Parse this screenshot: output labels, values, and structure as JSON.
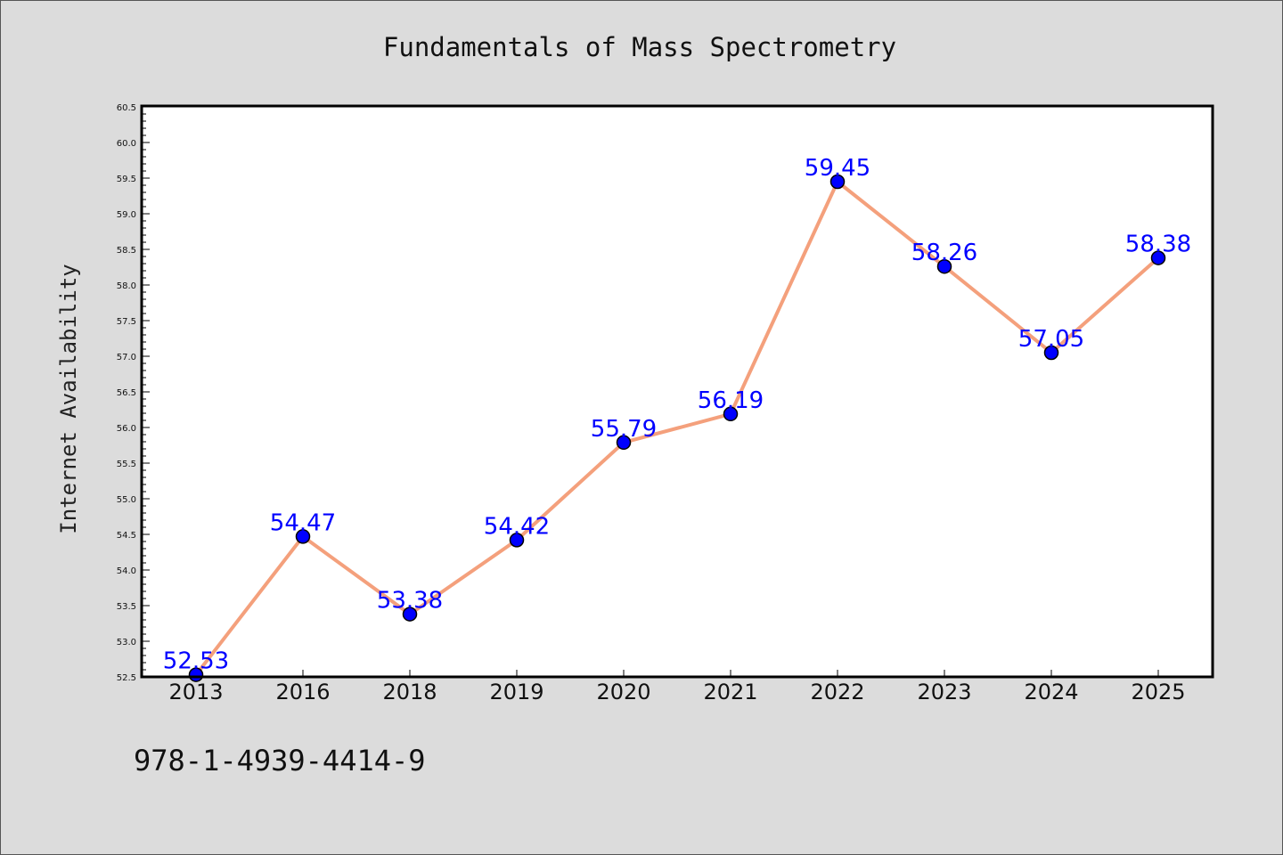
{
  "chart_data": {
    "type": "line",
    "title": "Fundamentals of Mass Spectrometry",
    "xlabel": "",
    "ylabel": "Internet Availability",
    "categories": [
      "2013",
      "2016",
      "2018",
      "2019",
      "2020",
      "2021",
      "2022",
      "2023",
      "2024",
      "2025"
    ],
    "series": [
      {
        "values": [
          52.53,
          54.47,
          53.38,
          54.42,
          55.79,
          56.19,
          59.45,
          58.26,
          57.05,
          58.38
        ],
        "line_color": "#f4a07c",
        "marker_color": "#0000ff",
        "label_color": "#0000ff"
      }
    ],
    "data_labels": [
      "52.53",
      "54.47",
      "53.38",
      "54.42",
      "55.79",
      "56.19",
      "59.45",
      "58.26",
      "57.05",
      "58.38"
    ],
    "ylim": [
      52.5,
      60.5
    ],
    "ytick_labels": [
      "52.5",
      "53.0",
      "53.5",
      "54.0",
      "54.5",
      "55.0",
      "55.5",
      "56.0",
      "56.5",
      "57.0",
      "57.5",
      "58.0",
      "58.5",
      "59.0",
      "59.5",
      "60.0",
      "60.5"
    ],
    "grid": false,
    "legend": "none"
  },
  "footer": {
    "isbn": "978-1-4939-4414-9"
  },
  "colors": {
    "background": "#dcdcdc",
    "plot_background": "#ffffff"
  }
}
